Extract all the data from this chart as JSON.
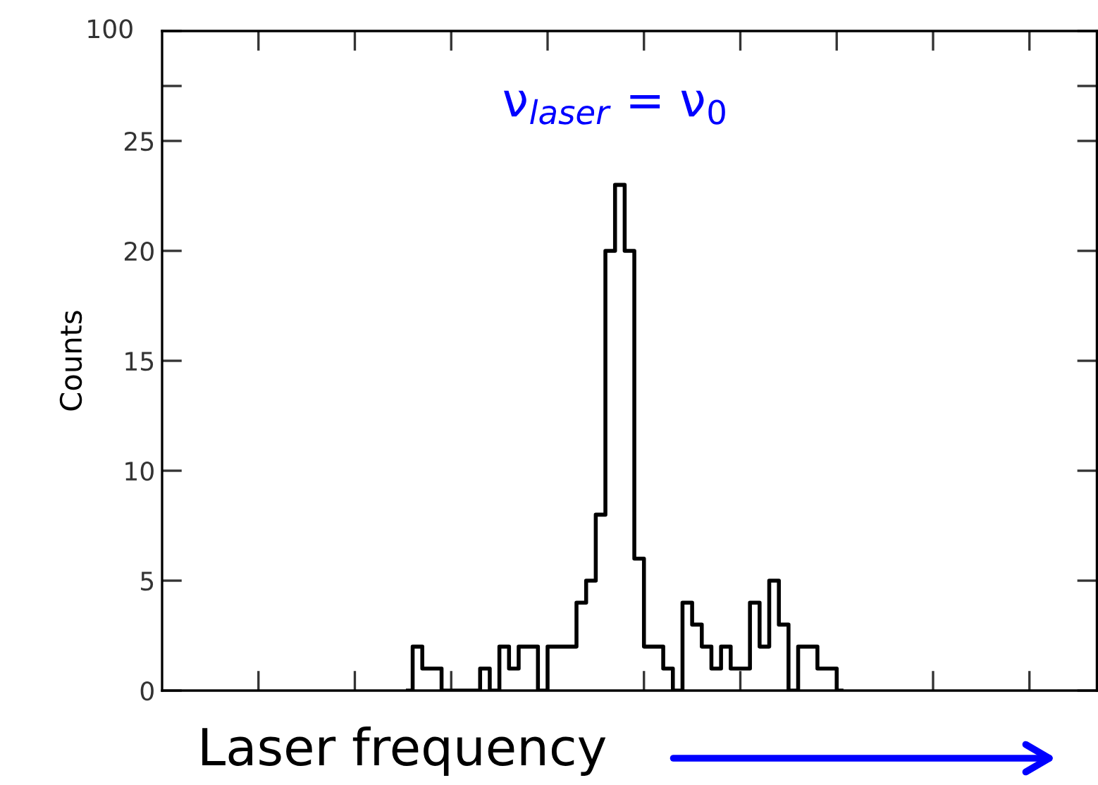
{
  "chart_data": {
    "type": "step",
    "categories": [
      null,
      null,
      null,
      null,
      null,
      null,
      null,
      null,
      null,
      null,
      null,
      null,
      null,
      null,
      null,
      null,
      null,
      null,
      null,
      null,
      null,
      null,
      null,
      null,
      null,
      null,
      null,
      null,
      null,
      null,
      null,
      null,
      null,
      null,
      null,
      null,
      null,
      null,
      null,
      null,
      null,
      null,
      null,
      null,
      null,
      null,
      null,
      null,
      null,
      null,
      null,
      null,
      null,
      null,
      null,
      null,
      null,
      null,
      null,
      null,
      null,
      null,
      null,
      null,
      null,
      null,
      null,
      null,
      null,
      null,
      null,
      null,
      null,
      null,
      null,
      null,
      null,
      null,
      null,
      null,
      null,
      null,
      null,
      null,
      null,
      null,
      null,
      null,
      null,
      null,
      null,
      null,
      null,
      null,
      null,
      null,
      null
    ],
    "values": [
      null,
      null,
      null,
      null,
      null,
      null,
      null,
      null,
      null,
      null,
      null,
      null,
      null,
      null,
      null,
      null,
      null,
      null,
      null,
      null,
      null,
      null,
      null,
      null,
      null,
      0,
      2,
      1,
      1,
      0,
      0,
      0,
      0,
      1,
      0,
      2,
      1,
      2,
      2,
      0,
      2,
      2,
      2,
      4,
      5,
      8,
      20,
      23,
      20,
      6,
      2,
      2,
      1,
      0,
      4,
      3,
      2,
      1,
      2,
      1,
      1,
      4,
      2,
      5,
      3,
      0,
      2,
      2,
      1,
      1,
      0,
      null,
      null,
      null,
      null,
      null,
      null,
      null,
      null,
      null,
      null,
      null,
      null,
      null,
      null,
      null,
      null,
      null,
      null,
      null,
      null,
      null,
      null,
      null,
      null,
      null,
      null
    ],
    "color": "#000000",
    "xlabel": "Laser frequency",
    "ylabel": "Counts",
    "annotations": [
      "ν$_{laser}$ = ν$_{0}$",
      "100"
    ],
    "ylim": [
      0,
      30
    ],
    "yticks": [
      0,
      5,
      10,
      15,
      20,
      25,
      {
        "value": 27.5,
        "label": null
      },
      {
        "value": 30,
        "label": null
      }
    ],
    "tick_labels": "y",
    "grid": false
  }
}
